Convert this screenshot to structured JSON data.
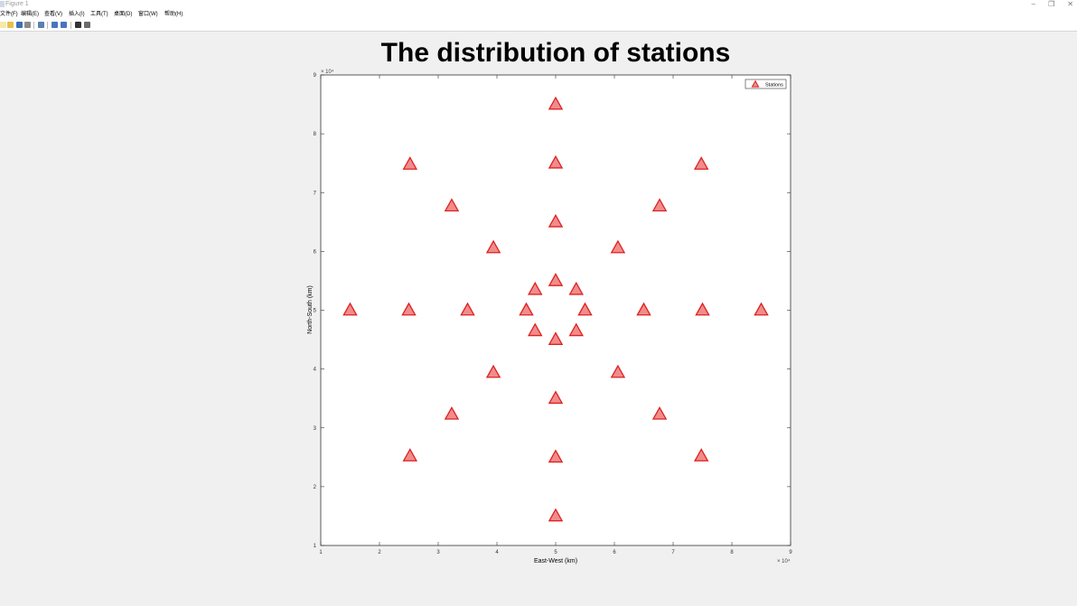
{
  "window": {
    "title": "Figure 1",
    "controls": [
      "–",
      "❐",
      "✕"
    ]
  },
  "menu": {
    "items": [
      "文件(F)",
      "编辑(E)",
      "查看(V)",
      "插入(I)",
      "工具(T)",
      "桌面(D)",
      "窗口(W)",
      "帮助(H)"
    ]
  },
  "toolbar": {
    "buttons": [
      {
        "icon": "new-file-icon",
        "color": "#f5e9a8"
      },
      {
        "icon": "open-folder-icon",
        "color": "#e8c04a"
      },
      {
        "icon": "save-icon",
        "color": "#3b6fb5"
      },
      {
        "icon": "print-icon",
        "color": "#8a8a8a"
      },
      {
        "icon": "zoom-icon",
        "color": "#5a7fb0"
      },
      {
        "icon": "figure-icon",
        "color": "#4a73c0"
      },
      {
        "icon": "dock-icon",
        "color": "#4a73c0"
      },
      {
        "icon": "pointer-icon",
        "color": "#333333"
      },
      {
        "icon": "property-editor-icon",
        "color": "#6a6a6a"
      }
    ]
  },
  "chart_data": {
    "type": "scatter",
    "title": "The distribution of stations",
    "xlabel": "East-West (km)",
    "ylabel": "North-South (km)",
    "x_exponent": "× 10⁴",
    "y_exponent": "× 10⁴",
    "xlim": [
      1,
      9
    ],
    "ylim": [
      1,
      9
    ],
    "xticks": [
      "1",
      "2",
      "3",
      "4",
      "5",
      "6",
      "7",
      "8",
      "9"
    ],
    "yticks": [
      "1",
      "2",
      "3",
      "4",
      "5",
      "6",
      "7",
      "8",
      "9"
    ],
    "grid": false,
    "legend_position": "top-right",
    "marker": "triangle",
    "marker_color": "#e02020",
    "marker_fill": "#f08c8c",
    "series": [
      {
        "name": "Stations",
        "points": [
          [
            5,
            8.5
          ],
          [
            5,
            7.5
          ],
          [
            5,
            6.5
          ],
          [
            5,
            5.5
          ],
          [
            5,
            4.5
          ],
          [
            5,
            3.5
          ],
          [
            5,
            2.5
          ],
          [
            5,
            1.5
          ],
          [
            1.5,
            5
          ],
          [
            2.5,
            5
          ],
          [
            3.5,
            5
          ],
          [
            4.5,
            5
          ],
          [
            5.5,
            5
          ],
          [
            6.5,
            5
          ],
          [
            7.5,
            5
          ],
          [
            8.5,
            5
          ],
          [
            2.52,
            7.48
          ],
          [
            3.23,
            6.77
          ],
          [
            3.94,
            6.06
          ],
          [
            4.65,
            5.35
          ],
          [
            5.35,
            4.65
          ],
          [
            6.06,
            3.94
          ],
          [
            6.77,
            3.23
          ],
          [
            7.48,
            2.52
          ],
          [
            7.48,
            7.48
          ],
          [
            6.77,
            6.77
          ],
          [
            6.06,
            6.06
          ],
          [
            5.35,
            5.35
          ],
          [
            4.65,
            4.65
          ],
          [
            3.94,
            3.94
          ],
          [
            3.23,
            3.23
          ],
          [
            2.52,
            2.52
          ]
        ]
      }
    ]
  }
}
